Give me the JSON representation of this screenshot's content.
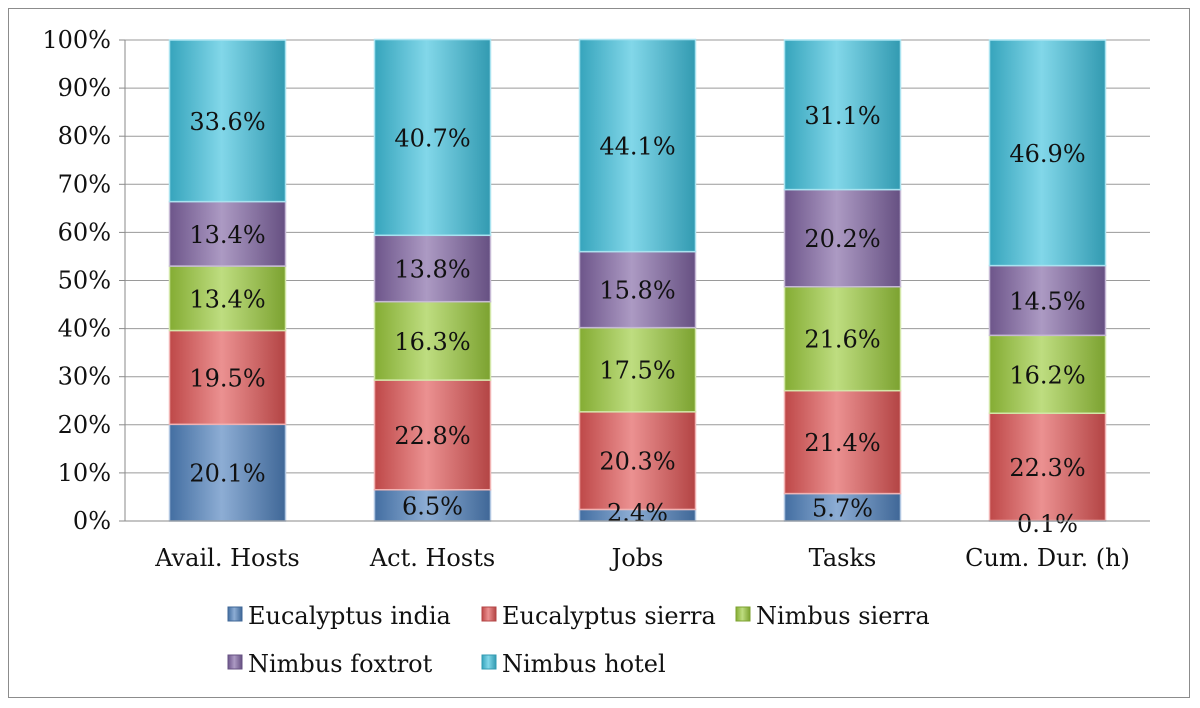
{
  "chart_data": {
    "type": "bar",
    "stacked": true,
    "percent_stacked": true,
    "categories": [
      "Avail. Hosts",
      "Act. Hosts",
      "Jobs",
      "Tasks",
      "Cum. Dur. (h)"
    ],
    "series": [
      {
        "name": "Eucalyptus india",
        "values": [
          20.1,
          6.5,
          2.4,
          5.7,
          0.1
        ],
        "labels": [
          "20.1%",
          "6.5%",
          "2.4%",
          "5.7%",
          "0.1%"
        ]
      },
      {
        "name": "Eucalyptus sierra",
        "values": [
          19.5,
          22.8,
          20.3,
          21.4,
          22.3
        ],
        "labels": [
          "19.5%",
          "22.8%",
          "20.3%",
          "21.4%",
          "22.3%"
        ]
      },
      {
        "name": "Nimbus sierra",
        "values": [
          13.4,
          16.3,
          17.5,
          21.6,
          16.2
        ],
        "labels": [
          "13.4%",
          "16.3%",
          "17.5%",
          "21.6%",
          "16.2%"
        ]
      },
      {
        "name": "Nimbus foxtrot",
        "values": [
          13.4,
          13.8,
          15.8,
          20.2,
          14.5
        ],
        "labels": [
          "13.4%",
          "13.8%",
          "15.8%",
          "20.2%",
          "14.5%"
        ]
      },
      {
        "name": "Nimbus hotel",
        "values": [
          33.6,
          40.7,
          44.1,
          31.1,
          46.9
        ],
        "labels": [
          "33.6%",
          "40.7%",
          "44.1%",
          "31.1%",
          "46.9%"
        ]
      }
    ],
    "colors": [
      "#4f81bd",
      "#e05555",
      "#9bca3c",
      "#8064a2",
      "#3fc1dd"
    ],
    "ylim": [
      0,
      100
    ],
    "yticks": [
      "0%",
      "10%",
      "20%",
      "30%",
      "40%",
      "50%",
      "60%",
      "70%",
      "80%",
      "90%",
      "100%"
    ],
    "grid": true,
    "legend": "bottom",
    "title": "",
    "xlabel": "",
    "ylabel": ""
  }
}
